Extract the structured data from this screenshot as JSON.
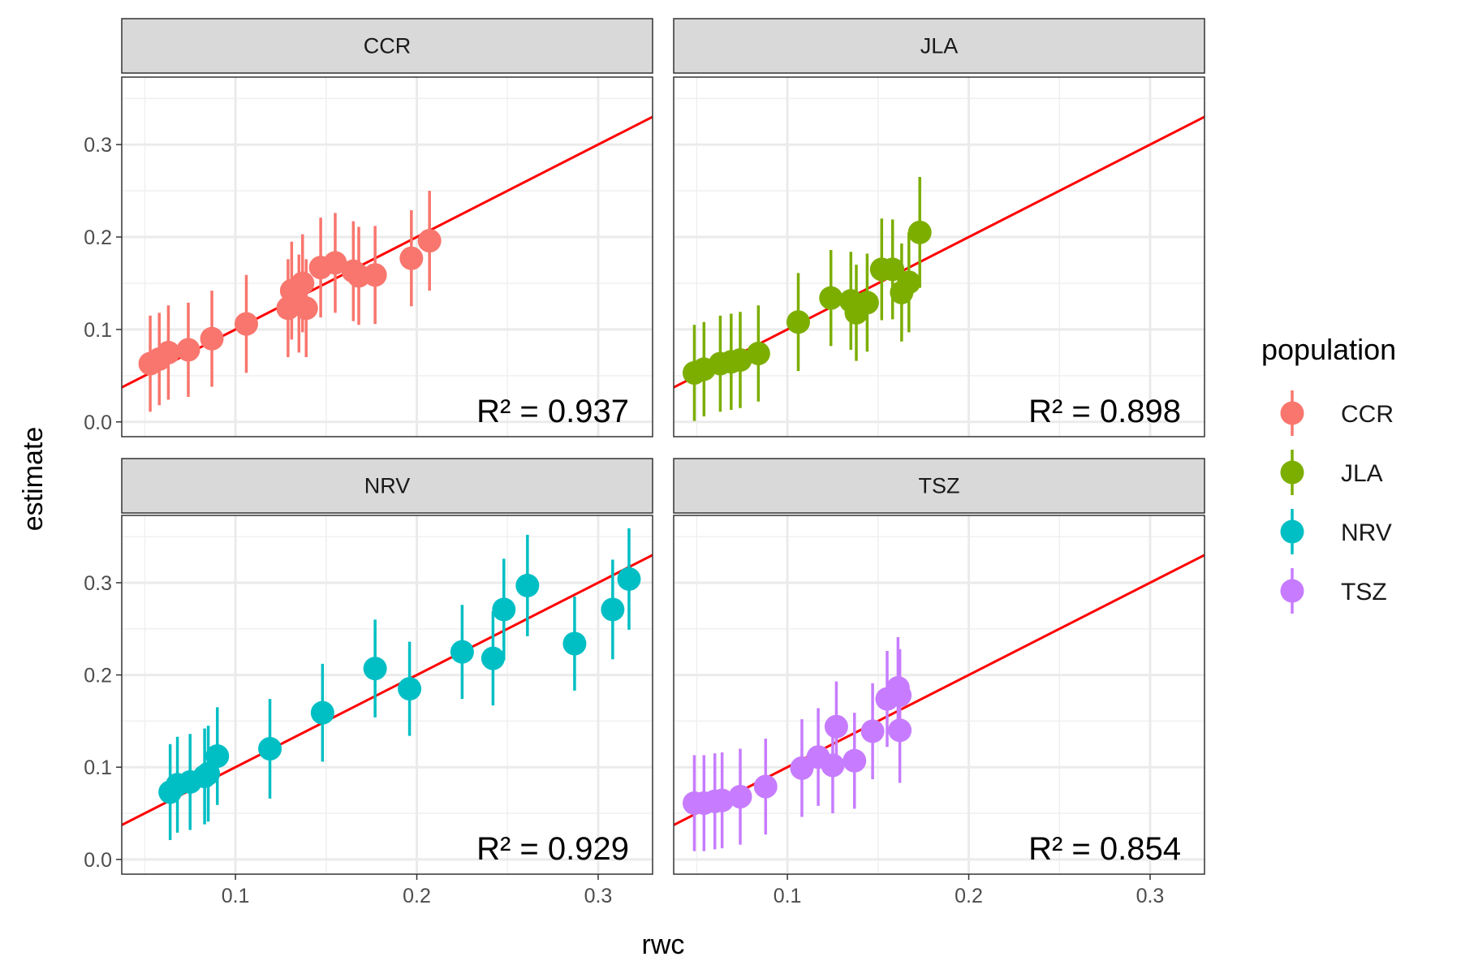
{
  "figure": {
    "xlabel": "rwc",
    "ylabel": "estimate",
    "legend_title": "population"
  },
  "chart_data": [
    {
      "type": "scatter",
      "title": "CCR",
      "annotation": "R² = 0.937",
      "xlim": [
        0.0373,
        0.33
      ],
      "ylim": [
        -0.016,
        0.373
      ],
      "xticks": [
        0.1,
        0.2,
        0.3
      ],
      "yticks": [
        {
          "value": 0,
          "label": "0.0"
        },
        0.1,
        0.2,
        0.3
      ],
      "x_minor_ticks": [
        0.05,
        0.15,
        0.25
      ],
      "y_minor_ticks": [
        0.05,
        0.15,
        0.25,
        0.35
      ],
      "grid": true,
      "lines": [
        {
          "color": "#ff0000",
          "slope": 1,
          "intercept": 0
        }
      ],
      "series": [
        {
          "name": "CCR",
          "color": "#f8766d",
          "x": [
            0.053,
            0.058,
            0.063,
            0.074,
            0.087,
            0.106,
            0.129,
            0.131,
            0.135,
            0.137,
            0.139,
            0.147,
            0.155,
            0.165,
            0.168,
            0.177,
            0.197,
            0.207
          ],
          "values": [
            0.063,
            0.068,
            0.075,
            0.078,
            0.09,
            0.106,
            0.123,
            0.142,
            0.128,
            0.15,
            0.123,
            0.167,
            0.172,
            0.163,
            0.158,
            0.159,
            0.177,
            0.196
          ],
          "errors": [
            0.052,
            0.05,
            0.051,
            0.051,
            0.052,
            0.053,
            0.053,
            0.053,
            0.053,
            0.053,
            0.053,
            0.054,
            0.054,
            0.054,
            0.053,
            0.053,
            0.052,
            0.054
          ]
        }
      ]
    },
    {
      "type": "scatter",
      "title": "JLA",
      "annotation": "R² = 0.898",
      "xlim": [
        0.0373,
        0.33
      ],
      "ylim": [
        -0.016,
        0.373
      ],
      "xticks": [
        0.1,
        0.2,
        0.3
      ],
      "yticks": [
        {
          "value": 0,
          "label": "0.0"
        },
        0.1,
        0.2,
        0.3
      ],
      "x_minor_ticks": [
        0.05,
        0.15,
        0.25
      ],
      "y_minor_ticks": [
        0.05,
        0.15,
        0.25,
        0.35
      ],
      "grid": true,
      "lines": [
        {
          "color": "#ff0000",
          "slope": 1,
          "intercept": 0
        }
      ],
      "series": [
        {
          "name": "JLA",
          "color": "#7cae00",
          "x": [
            0.0487,
            0.054,
            0.063,
            0.069,
            0.074,
            0.084,
            0.106,
            0.124,
            0.135,
            0.138,
            0.144,
            0.152,
            0.158,
            0.163,
            0.167,
            0.173
          ],
          "values": [
            0.053,
            0.057,
            0.063,
            0.065,
            0.067,
            0.074,
            0.108,
            0.134,
            0.131,
            0.118,
            0.129,
            0.165,
            0.165,
            0.14,
            0.151,
            0.205
          ],
          "errors": [
            0.052,
            0.051,
            0.052,
            0.052,
            0.052,
            0.052,
            0.053,
            0.052,
            0.053,
            0.052,
            0.053,
            0.055,
            0.054,
            0.053,
            0.054,
            0.06
          ]
        }
      ]
    },
    {
      "type": "scatter",
      "title": "NRV",
      "annotation": "R² = 0.929",
      "xlim": [
        0.0373,
        0.33
      ],
      "ylim": [
        -0.016,
        0.373
      ],
      "xticks": [
        0.1,
        0.2,
        0.3
      ],
      "yticks": [
        {
          "value": 0,
          "label": "0.0"
        },
        0.1,
        0.2,
        0.3
      ],
      "x_minor_ticks": [
        0.05,
        0.15,
        0.25
      ],
      "y_minor_ticks": [
        0.05,
        0.15,
        0.25,
        0.35
      ],
      "grid": true,
      "lines": [
        {
          "color": "#ff0000",
          "slope": 1,
          "intercept": 0
        }
      ],
      "series": [
        {
          "name": "NRV",
          "color": "#00bfc4",
          "x": [
            0.064,
            0.068,
            0.075,
            0.083,
            0.085,
            0.09,
            0.119,
            0.148,
            0.177,
            0.196,
            0.225,
            0.242,
            0.248,
            0.261,
            0.287,
            0.308,
            0.317
          ],
          "values": [
            0.073,
            0.081,
            0.084,
            0.09,
            0.093,
            0.112,
            0.12,
            0.159,
            0.207,
            0.185,
            0.225,
            0.218,
            0.271,
            0.297,
            0.234,
            0.271,
            0.304
          ],
          "errors": [
            0.052,
            0.052,
            0.052,
            0.052,
            0.052,
            0.053,
            0.054,
            0.053,
            0.053,
            0.051,
            0.051,
            0.051,
            0.055,
            0.055,
            0.051,
            0.054,
            0.055
          ]
        }
      ]
    },
    {
      "type": "scatter",
      "title": "TSZ",
      "annotation": "R² = 0.854",
      "xlim": [
        0.0373,
        0.33
      ],
      "ylim": [
        -0.016,
        0.373
      ],
      "xticks": [
        0.1,
        0.2,
        0.3
      ],
      "yticks": [
        {
          "value": 0,
          "label": "0.0"
        },
        0.1,
        0.2,
        0.3
      ],
      "x_minor_ticks": [
        0.05,
        0.15,
        0.25
      ],
      "y_minor_ticks": [
        0.05,
        0.15,
        0.25,
        0.35
      ],
      "grid": true,
      "lines": [
        {
          "color": "#ff0000",
          "slope": 1,
          "intercept": 0
        }
      ],
      "series": [
        {
          "name": "TSZ",
          "color": "#c77cff",
          "x": [
            0.0487,
            0.054,
            0.06,
            0.064,
            0.074,
            0.088,
            0.108,
            0.117,
            0.125,
            0.127,
            0.137,
            0.147,
            0.155,
            0.161,
            0.162,
            0.162
          ],
          "values": [
            0.061,
            0.061,
            0.063,
            0.064,
            0.068,
            0.079,
            0.099,
            0.111,
            0.102,
            0.144,
            0.107,
            0.139,
            0.174,
            0.186,
            0.178,
            0.14
          ],
          "errors": [
            0.052,
            0.052,
            0.052,
            0.052,
            0.052,
            0.052,
            0.053,
            0.053,
            0.052,
            0.049,
            0.052,
            0.052,
            0.052,
            0.055,
            0.05,
            0.057
          ]
        }
      ]
    }
  ]
}
